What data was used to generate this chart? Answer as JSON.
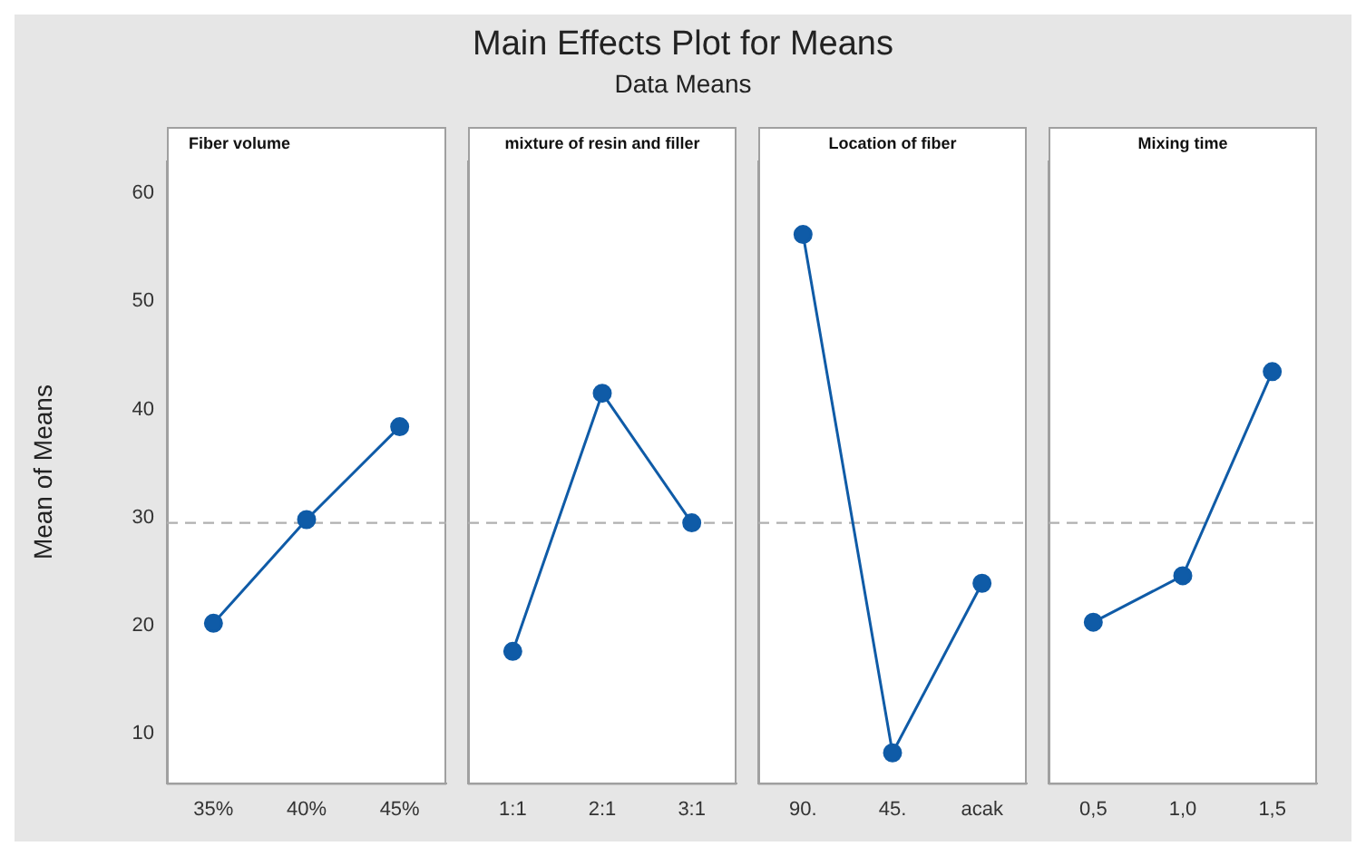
{
  "chart_data": [
    {
      "type": "other",
      "title": "Main Effects Plot for Means",
      "subtitle": "Data Means"
    },
    {
      "type": "line",
      "title": "Fiber volume",
      "ylabel": "Mean of Means",
      "categories": [
        "35%",
        "40%",
        "45%"
      ],
      "values": [
        20.2,
        29.8,
        38.4
      ],
      "color": "#0f5ba7",
      "ylim": [
        5.4,
        63
      ],
      "yticks": [
        10,
        20,
        30,
        40,
        50,
        60
      ],
      "ref_lines": [
        {
          "axis": "y",
          "value": 29.5,
          "color": "#b0b0b0",
          "line_style": "dashed"
        }
      ],
      "marker": "circle",
      "grid": false
    },
    {
      "type": "line",
      "title": "mixture of resin and filler",
      "categories": [
        "1:1",
        "2:1",
        "3:1"
      ],
      "values": [
        17.6,
        41.5,
        29.5
      ],
      "color": "#0f5ba7",
      "ylim": [
        5.4,
        63
      ],
      "yticks": [
        10,
        20,
        30,
        40,
        50,
        60
      ],
      "tick_labels": "x",
      "ref_lines": [
        {
          "axis": "y",
          "value": 29.5,
          "color": "#b0b0b0",
          "line_style": "dashed"
        }
      ],
      "marker": "circle",
      "grid": false
    },
    {
      "type": "line",
      "title": "Location of fiber",
      "categories": [
        "90.",
        "45.",
        "acak"
      ],
      "values": [
        56.2,
        8.2,
        23.9
      ],
      "color": "#0f5ba7",
      "ylim": [
        5.4,
        63
      ],
      "yticks": [
        10,
        20,
        30,
        40,
        50,
        60
      ],
      "tick_labels": "x",
      "ref_lines": [
        {
          "axis": "y",
          "value": 29.5,
          "color": "#b0b0b0",
          "line_style": "dashed"
        }
      ],
      "marker": "circle",
      "grid": false
    },
    {
      "type": "line",
      "title": "Mixing time",
      "categories": [
        "0,5",
        "1,0",
        "1,5"
      ],
      "values": [
        20.3,
        24.6,
        43.5
      ],
      "color": "#0f5ba7",
      "ylim": [
        5.4,
        63
      ],
      "yticks": [
        10,
        20,
        30,
        40,
        50,
        60
      ],
      "tick_labels": "x",
      "ref_lines": [
        {
          "axis": "y",
          "value": 29.5,
          "color": "#b0b0b0",
          "line_style": "dashed"
        }
      ],
      "marker": "circle",
      "grid": false
    }
  ]
}
